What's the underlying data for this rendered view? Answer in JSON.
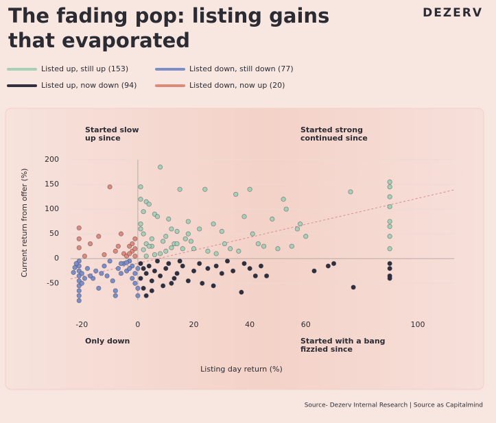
{
  "brand": "DEZERV",
  "source": "Source- Dezerv Internal Research | Source as Capitalmind",
  "chart_data": {
    "type": "scatter",
    "title": [
      "The fading pop: listing gains",
      "that evaporated"
    ],
    "x_label": "Listing day return (%)",
    "y_label": "Current return from offer (%)",
    "xlim": [
      -24,
      113
    ],
    "ylim": [
      -94,
      211
    ],
    "xticks": [
      -20,
      0,
      20,
      40,
      60,
      100
    ],
    "yticks": [
      -50,
      0,
      50,
      100,
      150,
      200
    ],
    "grid": true,
    "annotations": [
      {
        "lines": [
          "Started slow",
          "up since"
        ],
        "corner": "top-left"
      },
      {
        "lines": [
          "Started strong",
          "continued since"
        ],
        "corner": "top-right"
      },
      {
        "lines": [
          "Only down"
        ],
        "corner": "bottom-left"
      },
      {
        "lines": [
          "Started with a bang",
          "fizzied since"
        ],
        "corner": "bottom-right"
      }
    ],
    "trendline": {
      "color": "#d98a95",
      "x": [
        -24,
        113
      ],
      "values": [
        -41,
        139
      ]
    },
    "series": [
      {
        "name": "Listed up, still up (153)",
        "color": "#a6d1b6",
        "x": [
          1,
          1,
          2,
          1,
          3,
          2,
          4,
          5,
          3,
          6,
          7,
          8,
          5,
          9,
          10,
          11,
          12,
          13,
          14,
          15,
          16,
          17,
          18,
          19,
          20,
          22,
          24,
          25,
          27,
          28,
          30,
          31,
          33,
          35,
          36,
          38,
          40,
          41,
          43,
          45,
          48,
          50,
          52,
          53,
          55,
          57,
          58,
          60,
          76,
          90,
          90,
          90,
          90,
          90,
          90,
          90,
          90,
          8,
          18,
          2,
          4,
          6,
          10,
          12,
          14,
          3,
          1
        ],
        "values": [
          145,
          120,
          95,
          70,
          115,
          50,
          110,
          40,
          30,
          90,
          85,
          185,
          25,
          35,
          45,
          80,
          60,
          30,
          55,
          140,
          20,
          40,
          75,
          35,
          20,
          60,
          140,
          15,
          70,
          10,
          55,
          30,
          20,
          130,
          15,
          85,
          140,
          50,
          30,
          25,
          80,
          20,
          120,
          100,
          25,
          60,
          70,
          45,
          135,
          155,
          145,
          125,
          105,
          75,
          65,
          45,
          20,
          10,
          50,
          18,
          25,
          8,
          15,
          22,
          30,
          5,
          60
        ]
      },
      {
        "name": "Listed down, still down (77)",
        "color": "#7b8ec8",
        "x": [
          -21,
          -21,
          -21,
          -21,
          -21,
          -21,
          -21,
          -21,
          -21,
          -22,
          -20,
          -20,
          -23,
          -18,
          -16,
          -15,
          -14,
          -12,
          -11,
          -10,
          -9,
          -8,
          -7,
          -6,
          -5,
          -4,
          -3,
          -2,
          -1,
          -1,
          -2,
          -3,
          -4,
          -6,
          -13,
          -17,
          0,
          0,
          0,
          -8,
          -19,
          -22.5
        ],
        "values": [
          -5,
          -15,
          -25,
          -35,
          -45,
          -55,
          -65,
          -75,
          -85,
          -10,
          -30,
          -50,
          -28,
          -20,
          -40,
          -25,
          -60,
          -15,
          -35,
          -5,
          -45,
          -75,
          -20,
          -30,
          -10,
          -25,
          -5,
          -15,
          -30,
          -50,
          -40,
          -20,
          -8,
          -10,
          -30,
          -35,
          -20,
          -60,
          -75,
          -65,
          -40,
          -18
        ]
      },
      {
        "name": "Listed up, now down (94)",
        "color": "#2e3040",
        "x": [
          1,
          2,
          1,
          2,
          3,
          4,
          5,
          6,
          7,
          8,
          9,
          10,
          11,
          12,
          14,
          15,
          16,
          18,
          20,
          22,
          23,
          25,
          27,
          28,
          30,
          32,
          34,
          37,
          38,
          40,
          42,
          44,
          46,
          63,
          68,
          70,
          77,
          90,
          90,
          90,
          90,
          3,
          5,
          13
        ],
        "values": [
          -10,
          -20,
          -40,
          -60,
          -30,
          -15,
          -45,
          -25,
          -5,
          -35,
          -55,
          -20,
          -10,
          -50,
          -30,
          -5,
          -15,
          -45,
          -25,
          -10,
          -50,
          -20,
          -55,
          -15,
          -30,
          -5,
          -25,
          -68,
          -10,
          -20,
          -35,
          -15,
          -35,
          -25,
          -15,
          -10,
          -58,
          -10,
          -20,
          -35,
          -40,
          -75,
          -65,
          -40
        ]
      },
      {
        "name": "Listed down, now up (20)",
        "color": "#de8a7a",
        "x": [
          -21,
          -21,
          -21,
          -19,
          -17,
          -14,
          -10,
          -8,
          -6,
          -5,
          -3,
          -2,
          -1,
          -1,
          -4,
          -2,
          -7,
          -12,
          -1,
          -3
        ],
        "values": [
          62,
          40,
          22,
          5,
          30,
          45,
          145,
          15,
          50,
          10,
          25,
          15,
          40,
          5,
          5,
          30,
          25,
          8,
          20,
          10
        ]
      }
    ]
  }
}
